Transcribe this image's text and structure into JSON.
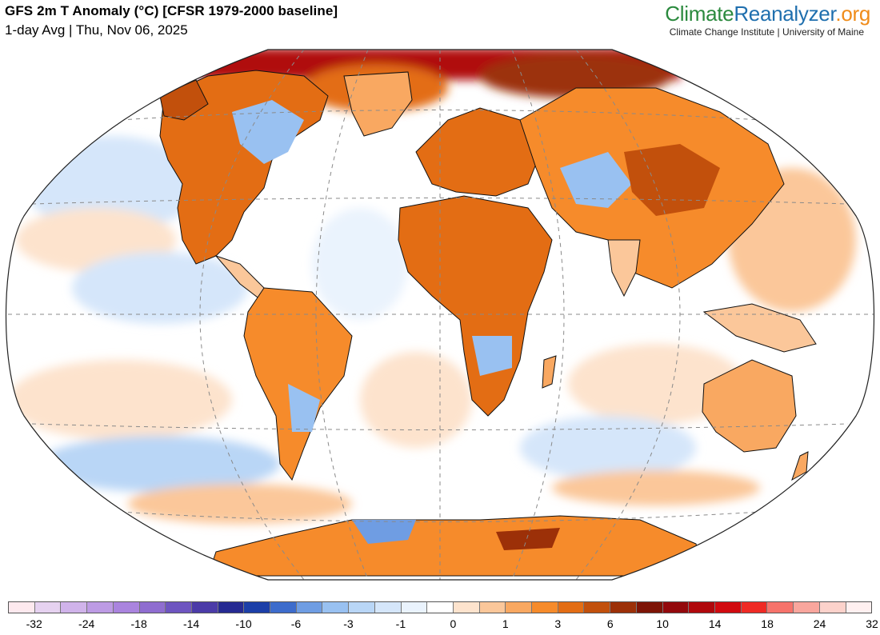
{
  "header": {
    "title": "GFS 2m T Anomaly (°C) [CFSR 1979-2000 baseline]",
    "subtitle": "1-day Avg | Thu, Nov 06, 2025"
  },
  "brand": {
    "name_part1": "Climate",
    "name_part2": "Reanalyzer",
    "name_part3": ".org",
    "affiliation": "Climate Change Institute | University of Maine"
  },
  "legend": {
    "colors": [
      "#fde9ee",
      "#e6d2f0",
      "#d0b3ea",
      "#bd9be4",
      "#aa84de",
      "#8f6dd0",
      "#6e55c0",
      "#4b3ba8",
      "#262a92",
      "#1c3fa8",
      "#3d6ccc",
      "#6f9de3",
      "#99c1f1",
      "#b9d6f6",
      "#d5e6fa",
      "#eaf3fd",
      "#ffffff",
      "#fde3cd",
      "#fbc79a",
      "#f9a861",
      "#f68b2b",
      "#e36d14",
      "#c2500c",
      "#9c3008",
      "#7d1406",
      "#93090c",
      "#b0080c",
      "#d10a0f",
      "#ef2a24",
      "#f6736b",
      "#f9a69d",
      "#fcd2cb",
      "#fff0f0"
    ],
    "ticks": [
      "-32",
      "-24",
      "-18",
      "-14",
      "-10",
      "-6",
      "-3",
      "-1",
      "0",
      "1",
      "3",
      "6",
      "10",
      "14",
      "18",
      "24",
      "32"
    ]
  },
  "map": {
    "projection": "winkel-tripel",
    "ocean_color": "#ffffff",
    "graticule_color": "#8a8a8a",
    "coast_color": "#111111"
  }
}
